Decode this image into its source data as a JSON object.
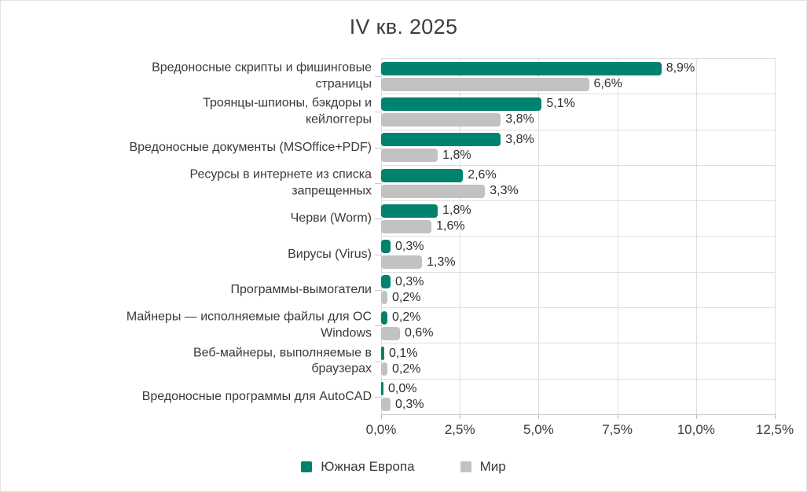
{
  "title": "IV кв. 2025",
  "chart_data": {
    "type": "bar",
    "orientation": "horizontal",
    "title": "IV кв. 2025",
    "categories": [
      "Вредоносные скрипты и фишинговые\nстраницы",
      "Троянцы-шпионы, бэкдоры и\nкейлоггеры",
      "Вредоносные документы (MSOffice+PDF)",
      "Ресурсы в интернете из списка\nзапрещенных",
      "Черви (Worm)",
      "Вирусы (Virus)",
      "Программы-вымогатели",
      "Майнеры — исполняемые файлы для ОС\nWindows",
      "Веб-майнеры, выполняемые в\nбраузерах",
      "Вредоносные программы для AutoCAD"
    ],
    "series": [
      {
        "name": "Южная Европа",
        "color": "#00826e",
        "values": [
          8.9,
          5.1,
          3.8,
          2.6,
          1.8,
          0.3,
          0.3,
          0.2,
          0.1,
          0.0
        ],
        "labels": [
          "8,9%",
          "5,1%",
          "3,8%",
          "2,6%",
          "1,8%",
          "0,3%",
          "0,3%",
          "0,2%",
          "0,1%",
          "0,0%"
        ]
      },
      {
        "name": "Мир",
        "color": "#c2c2c2",
        "values": [
          6.6,
          3.8,
          1.8,
          3.3,
          1.6,
          1.3,
          0.2,
          0.6,
          0.2,
          0.3
        ],
        "labels": [
          "6,6%",
          "3,8%",
          "1,8%",
          "3,3%",
          "1,6%",
          "1,3%",
          "0,2%",
          "0,6%",
          "0,2%",
          "0,3%"
        ]
      }
    ],
    "xlabel": "",
    "ylabel": "",
    "x_ticks": [
      "0,0%",
      "2,5%",
      "5,0%",
      "7,5%",
      "10,0%",
      "12,5%"
    ],
    "xlim": [
      0,
      12.5
    ],
    "grid": true,
    "legend_position": "bottom",
    "colors": {
      "grid": "#dedede",
      "axis": "#cfcfcf",
      "text": "#3a3a3a",
      "background": "#ffffff",
      "border": "#e2e2e2"
    }
  }
}
